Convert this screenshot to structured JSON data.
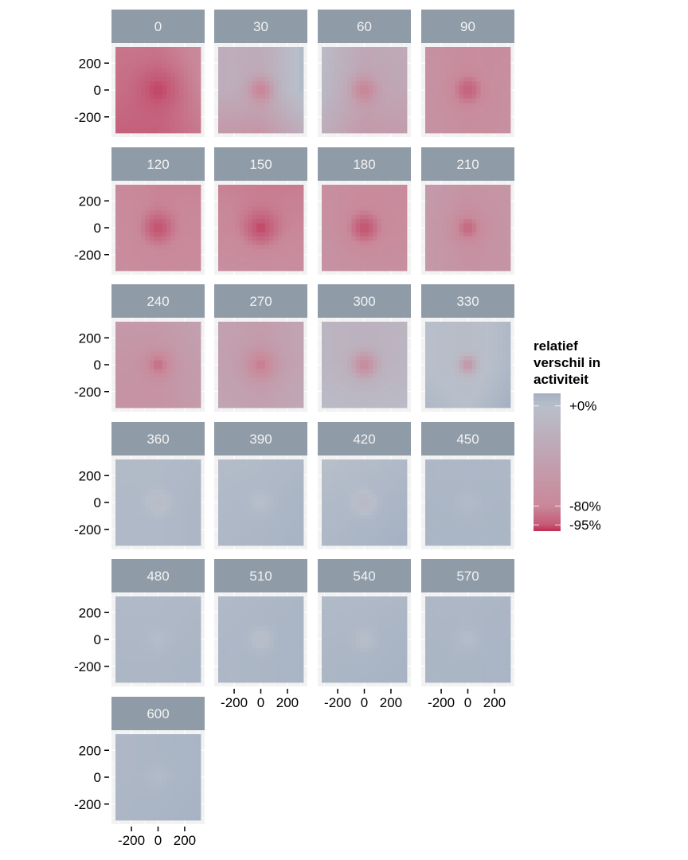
{
  "chart_data": {
    "type": "heatmap",
    "title": "",
    "xlabel": "",
    "ylabel": "",
    "facet_labels": [
      "0",
      "30",
      "60",
      "90",
      "120",
      "150",
      "180",
      "210",
      "240",
      "270",
      "300",
      "330",
      "360",
      "390",
      "420",
      "450",
      "480",
      "510",
      "540",
      "570",
      "600"
    ],
    "x_ticks": [
      "-200",
      "0",
      "200"
    ],
    "y_ticks": [
      "200",
      "0",
      "-200"
    ],
    "x_tick_values": [
      -200,
      0,
      200
    ],
    "y_tick_values": [
      200,
      0,
      -200
    ],
    "xlim": [
      -320,
      320
    ],
    "ylim": [
      -320,
      320
    ],
    "grid": true,
    "facet_layout": {
      "ncol": 4,
      "nrow": 6
    },
    "grid_cells": 20,
    "panels": [
      {
        "label": "0",
        "center_pct": -97,
        "background_pct": -88,
        "spread": 170,
        "left_pct": -88,
        "right_pct": -80,
        "bottom_pct": -93,
        "top_pct": -86
      },
      {
        "label": "30",
        "center_pct": -82,
        "background_pct": -30,
        "spread": 90,
        "left_pct": -25,
        "right_pct": 5,
        "bottom_pct": -60,
        "top_pct": -30
      },
      {
        "label": "60",
        "center_pct": -82,
        "background_pct": -40,
        "spread": 90,
        "left_pct": -10,
        "right_pct": -35,
        "bottom_pct": -55,
        "top_pct": -35
      },
      {
        "label": "90",
        "center_pct": -92,
        "background_pct": -72,
        "spread": 120,
        "left_pct": -65,
        "right_pct": -70,
        "bottom_pct": -72,
        "top_pct": -74
      },
      {
        "label": "120",
        "center_pct": -96,
        "background_pct": -78,
        "spread": 120,
        "left_pct": -74,
        "right_pct": -78,
        "bottom_pct": -76,
        "top_pct": -82
      },
      {
        "label": "150",
        "center_pct": -97,
        "background_pct": -80,
        "spread": 130,
        "left_pct": -78,
        "right_pct": -80,
        "bottom_pct": -72,
        "top_pct": -84
      },
      {
        "label": "180",
        "center_pct": -96,
        "background_pct": -74,
        "spread": 120,
        "left_pct": -68,
        "right_pct": -74,
        "bottom_pct": -70,
        "top_pct": -76
      },
      {
        "label": "210",
        "center_pct": -90,
        "background_pct": -66,
        "spread": 110,
        "left_pct": -55,
        "right_pct": -62,
        "bottom_pct": -66,
        "top_pct": -64
      },
      {
        "label": "240",
        "center_pct": -88,
        "background_pct": -62,
        "spread": 100,
        "left_pct": -62,
        "right_pct": -50,
        "bottom_pct": -64,
        "top_pct": -55
      },
      {
        "label": "270",
        "center_pct": -84,
        "background_pct": -52,
        "spread": 110,
        "left_pct": -45,
        "right_pct": -40,
        "bottom_pct": -45,
        "top_pct": -50
      },
      {
        "label": "300",
        "center_pct": -74,
        "background_pct": -20,
        "spread": 90,
        "left_pct": -15,
        "right_pct": -15,
        "bottom_pct": -10,
        "top_pct": -20
      },
      {
        "label": "330",
        "center_pct": -60,
        "background_pct": -5,
        "spread": 60,
        "left_pct": 0,
        "right_pct": 5,
        "bottom_pct": 0,
        "top_pct": -5
      },
      {
        "label": "360",
        "center_pct": -5,
        "background_pct": 4,
        "spread": 80,
        "left_pct": 4,
        "right_pct": 6,
        "bottom_pct": 4,
        "top_pct": 3
      },
      {
        "label": "390",
        "center_pct": 0,
        "background_pct": 5,
        "spread": 80,
        "left_pct": 4,
        "right_pct": 7,
        "bottom_pct": 6,
        "top_pct": 3
      },
      {
        "label": "420",
        "center_pct": -8,
        "background_pct": 5,
        "spread": 80,
        "left_pct": 3,
        "right_pct": 7,
        "bottom_pct": 7,
        "top_pct": 2
      },
      {
        "label": "450",
        "center_pct": 3,
        "background_pct": 6,
        "spread": 80,
        "left_pct": 6,
        "right_pct": 6,
        "bottom_pct": 6,
        "top_pct": 5
      },
      {
        "label": "480",
        "center_pct": 2,
        "background_pct": 5,
        "spread": 80,
        "left_pct": 5,
        "right_pct": 6,
        "bottom_pct": 6,
        "top_pct": 4
      },
      {
        "label": "510",
        "center_pct": -2,
        "background_pct": 6,
        "spread": 80,
        "left_pct": 5,
        "right_pct": 7,
        "bottom_pct": 6,
        "top_pct": 5
      },
      {
        "label": "540",
        "center_pct": 0,
        "background_pct": 6,
        "spread": 80,
        "left_pct": 5,
        "right_pct": 7,
        "bottom_pct": 7,
        "top_pct": 4
      },
      {
        "label": "570",
        "center_pct": 2,
        "background_pct": 6,
        "spread": 80,
        "left_pct": 6,
        "right_pct": 7,
        "bottom_pct": 6,
        "top_pct": 5
      },
      {
        "label": "600",
        "center_pct": 3,
        "background_pct": 6,
        "spread": 80,
        "left_pct": 5,
        "right_pct": 7,
        "bottom_pct": 7,
        "top_pct": 6
      }
    ],
    "legend": {
      "title_lines": [
        "relatief",
        "verschil in",
        "activiteit"
      ],
      "placement": "right",
      "labels": [
        "+0%",
        "-80%",
        "-95%"
      ],
      "label_values": [
        0,
        -80,
        -95
      ],
      "scale_stops": [
        {
          "value": 10,
          "color": "#a3b0c2"
        },
        {
          "value": 0,
          "color": "#b8bfca"
        },
        {
          "value": -80,
          "color": "#c9889a"
        },
        {
          "value": -95,
          "color": "#c45a76"
        },
        {
          "value": -100,
          "color": "#c22c52"
        }
      ]
    },
    "colors": {
      "strip_fill": "#8f9ca8",
      "strip_text": "#f2f2f2",
      "panel_background": "#f2f2f2",
      "grid_line": "#ffffff"
    }
  }
}
